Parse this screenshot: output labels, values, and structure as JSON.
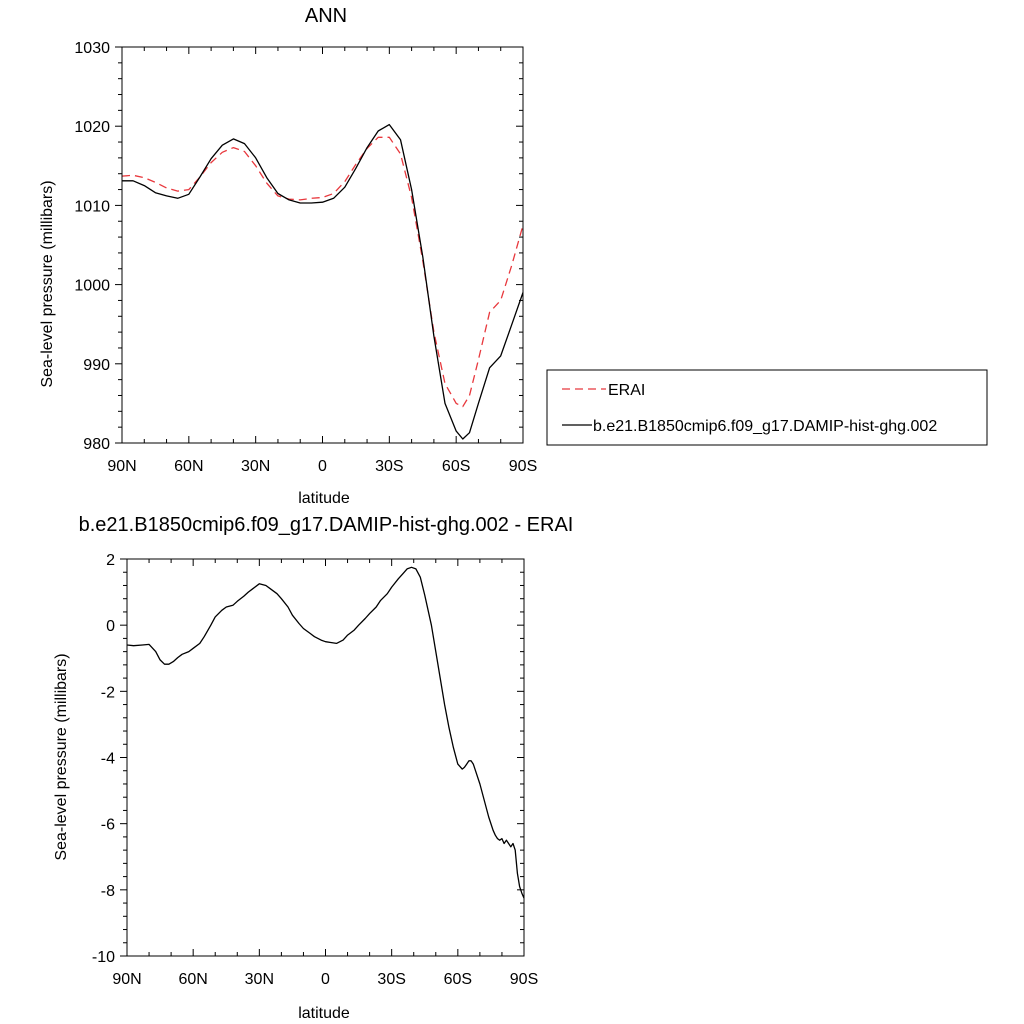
{
  "chart_data": [
    {
      "type": "line",
      "title": "ANN",
      "xlabel": "latitude",
      "ylabel": "Sea-level pressure (millibars)",
      "xlim": [
        90,
        -90
      ],
      "ylim": [
        980,
        1030
      ],
      "xticks": [
        90,
        60,
        30,
        0,
        -30,
        -60,
        -90
      ],
      "xtick_labels": [
        "90N",
        "60N",
        "30N",
        "0",
        "30S",
        "60S",
        "90S"
      ],
      "yticks": [
        980,
        990,
        1000,
        1010,
        1020,
        1030
      ],
      "ytick_labels": [
        "980",
        "990",
        "1000",
        "1010",
        "1020",
        "1030"
      ],
      "legend_position": "right",
      "series": [
        {
          "name": "ERAI",
          "color": "#e8383d",
          "dash": "dashed",
          "x": [
            90,
            85,
            80,
            75,
            70,
            65,
            60,
            55,
            50,
            45,
            40,
            35,
            30,
            25,
            20,
            15,
            10,
            5,
            0,
            -5,
            -10,
            -15,
            -20,
            -25,
            -30,
            -35,
            -40,
            -45,
            -50,
            -55,
            -60,
            -63,
            -66,
            -70,
            -75,
            -80,
            -85,
            -90
          ],
          "y": [
            1013.7,
            1013.8,
            1013.5,
            1012.9,
            1012.2,
            1011.8,
            1012.0,
            1013.6,
            1015.4,
            1016.7,
            1017.3,
            1016.8,
            1015.0,
            1012.8,
            1011.2,
            1010.8,
            1010.7,
            1010.9,
            1011.0,
            1011.5,
            1013.0,
            1015.2,
            1017.2,
            1018.6,
            1018.6,
            1016.5,
            1011.0,
            1003.0,
            994.0,
            987.5,
            985.0,
            984.6,
            986.0,
            990.5,
            996.5,
            998.0,
            1002.5,
            1007.5
          ]
        },
        {
          "name": "b.e21.B1850cmip6.f09_g17.DAMIP-hist-ghg.002",
          "color": "#000000",
          "dash": "solid",
          "x": [
            90,
            85,
            80,
            75,
            70,
            65,
            60,
            55,
            50,
            45,
            40,
            35,
            30,
            25,
            20,
            15,
            10,
            5,
            0,
            -5,
            -10,
            -15,
            -20,
            -25,
            -30,
            -35,
            -40,
            -45,
            -50,
            -55,
            -60,
            -63,
            -66,
            -70,
            -75,
            -80,
            -85,
            -90
          ],
          "y": [
            1013.1,
            1013.1,
            1012.5,
            1011.6,
            1011.2,
            1010.9,
            1011.4,
            1013.6,
            1015.9,
            1017.6,
            1018.4,
            1017.8,
            1016.0,
            1013.5,
            1011.5,
            1010.7,
            1010.3,
            1010.3,
            1010.4,
            1010.9,
            1012.3,
            1014.7,
            1017.3,
            1019.4,
            1020.2,
            1018.3,
            1012.0,
            1003.5,
            993.5,
            985.0,
            981.5,
            980.5,
            981.3,
            985.0,
            989.5,
            991.0,
            995.0,
            999.0
          ]
        }
      ]
    },
    {
      "type": "line",
      "title": "b.e21.B1850cmip6.f09_g17.DAMIP-hist-ghg.002 - ERAI",
      "xlabel": "latitude",
      "ylabel": "Sea-level pressure (millibars)",
      "xlim": [
        90,
        -90
      ],
      "ylim": [
        -10,
        2
      ],
      "xticks": [
        90,
        60,
        30,
        0,
        -30,
        -60,
        -90
      ],
      "xtick_labels": [
        "90N",
        "60N",
        "30N",
        "0",
        "30S",
        "60S",
        "90S"
      ],
      "yticks": [
        -10,
        -8,
        -6,
        -4,
        -2,
        0,
        2
      ],
      "ytick_labels": [
        "-10",
        "-8",
        "-6",
        "-4",
        "-2",
        "0",
        "2"
      ],
      "series": [
        {
          "color": "#000000",
          "dash": "solid",
          "x": [
            90,
            87,
            83,
            80,
            77,
            75,
            73,
            71,
            69,
            67,
            65,
            62,
            60,
            57,
            55,
            52,
            50,
            47,
            45,
            42,
            40,
            37,
            35,
            33,
            30,
            27,
            25,
            22,
            20,
            17,
            15,
            12,
            10,
            7,
            5,
            2,
            0,
            -2,
            -5,
            -8,
            -10,
            -13,
            -15,
            -18,
            -20,
            -23,
            -25,
            -28,
            -30,
            -33,
            -35,
            -37,
            -39,
            -41,
            -43,
            -45,
            -48,
            -50,
            -52,
            -54,
            -56,
            -58,
            -60,
            -62,
            -63,
            -64,
            -65,
            -66,
            -67,
            -68,
            -70,
            -72,
            -74,
            -76,
            -77,
            -78,
            -79,
            -80,
            -81,
            -82,
            -83,
            -84,
            -85,
            -86,
            -87,
            -88,
            -89,
            -90
          ],
          "y": [
            -0.6,
            -0.62,
            -0.6,
            -0.58,
            -0.8,
            -1.05,
            -1.18,
            -1.18,
            -1.1,
            -0.98,
            -0.88,
            -0.8,
            -0.7,
            -0.55,
            -0.35,
            0.0,
            0.25,
            0.45,
            0.55,
            0.6,
            0.72,
            0.88,
            1.0,
            1.1,
            1.25,
            1.2,
            1.1,
            0.95,
            0.8,
            0.55,
            0.3,
            0.05,
            -0.1,
            -0.25,
            -0.35,
            -0.45,
            -0.5,
            -0.52,
            -0.55,
            -0.45,
            -0.3,
            -0.15,
            0.0,
            0.2,
            0.35,
            0.55,
            0.75,
            0.95,
            1.15,
            1.4,
            1.55,
            1.7,
            1.75,
            1.7,
            1.45,
            0.9,
            0.0,
            -0.8,
            -1.6,
            -2.4,
            -3.1,
            -3.7,
            -4.2,
            -4.35,
            -4.3,
            -4.2,
            -4.1,
            -4.1,
            -4.2,
            -4.4,
            -4.8,
            -5.3,
            -5.8,
            -6.2,
            -6.35,
            -6.45,
            -6.5,
            -6.45,
            -6.6,
            -6.5,
            -6.6,
            -6.7,
            -6.6,
            -6.8,
            -7.5,
            -7.9,
            -8.1,
            -8.25
          ]
        }
      ]
    }
  ]
}
